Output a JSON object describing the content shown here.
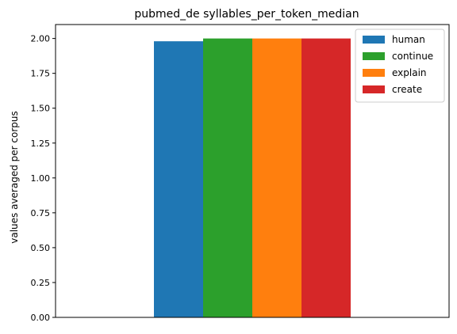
{
  "chart_data": {
    "type": "bar",
    "title": "pubmed_de syllables_per_token_median",
    "xlabel": "",
    "ylabel": "values averaged per corpus",
    "ylim": [
      0,
      2.1
    ],
    "yticks": [
      0.0,
      0.25,
      0.5,
      0.75,
      1.0,
      1.25,
      1.5,
      1.75,
      2.0
    ],
    "ytick_labels": [
      "0.00",
      "0.25",
      "0.50",
      "0.75",
      "1.00",
      "1.25",
      "1.50",
      "1.75",
      "2.00"
    ],
    "grid": false,
    "legend_position": "top-right",
    "categories": [
      ""
    ],
    "series": [
      {
        "name": "human",
        "color": "#1f77b4",
        "values": [
          1.98
        ]
      },
      {
        "name": "continue",
        "color": "#2ca02c",
        "values": [
          2.0
        ]
      },
      {
        "name": "explain",
        "color": "#ff7f0e",
        "values": [
          2.0
        ]
      },
      {
        "name": "create",
        "color": "#d62728",
        "values": [
          2.0
        ]
      }
    ]
  }
}
